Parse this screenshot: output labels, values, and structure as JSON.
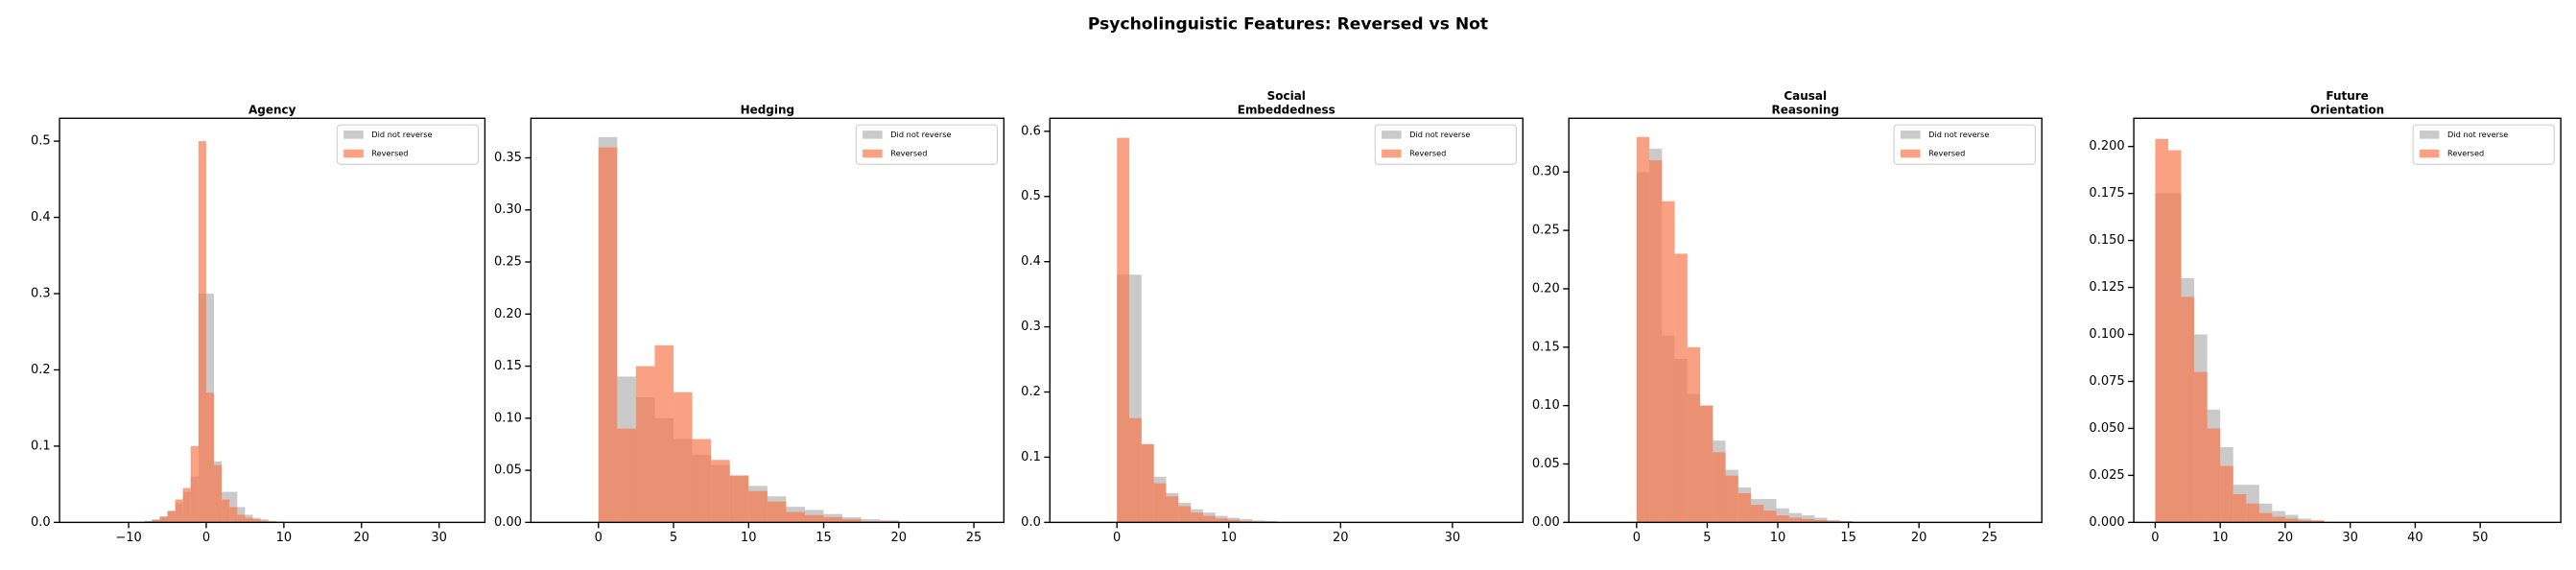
{
  "title": "Psycholinguistic Features: Reversed vs Not",
  "chart_data": [
    {
      "type": "histogram",
      "title": "Agency",
      "legend": "upper right",
      "xlim": [
        -18.9,
        35.9
      ],
      "ylim": [
        0,
        0.53
      ],
      "xticks": [
        {
          "value": -10,
          "label": "−10"
        },
        0,
        10,
        20,
        30
      ],
      "yticks": [
        {
          "value": 0,
          "label": "0.0"
        },
        0.1,
        0.2,
        0.3,
        0.4,
        0.5
      ],
      "series": [
        {
          "name": "Did not reverse",
          "color": "#a6a6a6",
          "bins": [
            -8,
            -7,
            -6,
            -5,
            -4,
            -3,
            -2,
            -1,
            0,
            1,
            2,
            3,
            4,
            5,
            6,
            7,
            8,
            9,
            10
          ],
          "values": [
            0.002,
            0.004,
            0.008,
            0.015,
            0.025,
            0.04,
            0.06,
            0.3,
            0.3,
            0.08,
            0.04,
            0.04,
            0.02,
            0.01,
            0.006,
            0.004,
            0.002,
            0.001
          ]
        },
        {
          "name": "Reversed",
          "color": "#f7794d",
          "bins": [
            -8,
            -7,
            -6,
            -5,
            -4,
            -3,
            -2,
            -1,
            0,
            1,
            2,
            3,
            4,
            5,
            6,
            7,
            8,
            9,
            10
          ],
          "values": [
            0.001,
            0.003,
            0.007,
            0.015,
            0.03,
            0.045,
            0.1,
            0.5,
            0.17,
            0.075,
            0.03,
            0.02,
            0.01,
            0.006,
            0.004,
            0.002,
            0.001,
            0.001
          ]
        }
      ]
    },
    {
      "type": "histogram",
      "title": "Hedging",
      "legend": "upper right",
      "xlim": [
        -4.5,
        27.0
      ],
      "ylim": [
        0,
        0.388
      ],
      "xticks": [
        0,
        5,
        10,
        15,
        20,
        25
      ],
      "yticks": [
        {
          "value": 0,
          "label": "0.00"
        },
        0.05,
        {
          "value": 0.1,
          "label": "0.10"
        },
        0.15,
        {
          "value": 0.2,
          "label": "0.20"
        },
        0.25,
        {
          "value": 0.3,
          "label": "0.30"
        },
        0.35
      ],
      "series": [
        {
          "name": "Did not reverse",
          "color": "#a6a6a6",
          "bins": [
            0,
            1.25,
            2.5,
            3.75,
            5,
            6.25,
            7.5,
            8.75,
            10,
            11.25,
            12.5,
            13.75,
            15,
            16.25,
            17.5,
            18.75,
            20
          ],
          "values": [
            0.37,
            0.14,
            0.12,
            0.1,
            0.08,
            0.065,
            0.055,
            0.045,
            0.035,
            0.025,
            0.015,
            0.012,
            0.008,
            0.005,
            0.003,
            0.002
          ]
        },
        {
          "name": "Reversed",
          "color": "#f7794d",
          "bins": [
            0,
            1.25,
            2.5,
            3.75,
            5,
            6.25,
            7.5,
            8.75,
            10,
            11.25,
            12.5,
            13.75,
            15,
            16.25,
            17.5,
            18.75,
            20
          ],
          "values": [
            0.36,
            0.09,
            0.15,
            0.17,
            0.125,
            0.08,
            0.06,
            0.045,
            0.03,
            0.02,
            0.01,
            0.007,
            0.005,
            0.003,
            0.001,
            0.001
          ]
        }
      ]
    },
    {
      "type": "histogram",
      "title": "Social\nEmbeddedness",
      "legend": "upper right",
      "xlim": [
        -6.0,
        36.3
      ],
      "ylim": [
        0,
        0.62
      ],
      "xticks": [
        0,
        10,
        20,
        30
      ],
      "yticks": [
        {
          "value": 0,
          "label": "0.0"
        },
        0.1,
        0.2,
        0.3,
        0.4,
        0.5,
        0.6
      ],
      "series": [
        {
          "name": "Did not reverse",
          "color": "#a6a6a6",
          "bins": [
            0,
            1.1,
            2.2,
            3.3,
            4.4,
            5.5,
            6.6,
            7.7,
            8.8,
            9.9,
            11,
            12.1,
            13.2,
            14.3
          ],
          "values": [
            0.38,
            0.38,
            0.12,
            0.07,
            0.045,
            0.03,
            0.02,
            0.015,
            0.01,
            0.007,
            0.005,
            0.003,
            0.002
          ]
        },
        {
          "name": "Reversed",
          "color": "#f7794d",
          "bins": [
            0,
            1.1,
            2.2,
            3.3,
            4.4,
            5.5,
            6.6,
            7.7,
            8.8,
            9.9,
            11,
            12.1,
            13.2,
            14.3
          ],
          "values": [
            0.59,
            0.16,
            0.12,
            0.06,
            0.04,
            0.025,
            0.015,
            0.01,
            0.006,
            0.004,
            0.002,
            0.001,
            0.001
          ]
        }
      ]
    },
    {
      "type": "histogram",
      "title": "Causal\nReasoning",
      "legend": "upper right",
      "xlim": [
        -4.8,
        28.7
      ],
      "ylim": [
        0,
        0.346
      ],
      "xticks": [
        0,
        5,
        10,
        15,
        20,
        25
      ],
      "yticks": [
        {
          "value": 0,
          "label": "0.00"
        },
        0.05,
        {
          "value": 0.1,
          "label": "0.10"
        },
        0.15,
        {
          "value": 0.2,
          "label": "0.20"
        },
        0.25,
        {
          "value": 0.3,
          "label": "0.30"
        }
      ],
      "series": [
        {
          "name": "Did not reverse",
          "color": "#a6a6a6",
          "bins": [
            0,
            0.9,
            1.8,
            2.7,
            3.6,
            4.5,
            5.4,
            6.3,
            7.2,
            8.1,
            9,
            9.9,
            10.8,
            11.7,
            12.6,
            13.5,
            14.4,
            15.3
          ],
          "values": [
            0.3,
            0.32,
            0.16,
            0.14,
            0.11,
            0.1,
            0.07,
            0.045,
            0.03,
            0.02,
            0.02,
            0.012,
            0.008,
            0.006,
            0.004,
            0.002,
            0.001
          ]
        },
        {
          "name": "Reversed",
          "color": "#f7794d",
          "bins": [
            0,
            0.9,
            1.8,
            2.7,
            3.6,
            4.5,
            5.4,
            6.3,
            7.2,
            8.1,
            9,
            9.9,
            10.8,
            11.7,
            12.6,
            13.5,
            14.4,
            15.3
          ],
          "values": [
            0.33,
            0.31,
            0.275,
            0.23,
            0.15,
            0.1,
            0.06,
            0.04,
            0.025,
            0.015,
            0.01,
            0.006,
            0.004,
            0.003,
            0.002,
            0.001,
            0.001
          ]
        }
      ]
    },
    {
      "type": "histogram",
      "title": "Future\nOrientation",
      "legend": "upper right",
      "xlim": [
        -3.3,
        62.4
      ],
      "ylim": [
        0,
        0.215
      ],
      "xticks": [
        0,
        10,
        20,
        30,
        40,
        50
      ],
      "yticks": [
        {
          "value": 0,
          "label": "0.000"
        },
        0.025,
        {
          "value": 0.05,
          "label": "0.050"
        },
        0.075,
        {
          "value": 0.1,
          "label": "0.100"
        },
        0.125,
        {
          "value": 0.15,
          "label": "0.150"
        },
        0.175,
        {
          "value": 0.2,
          "label": "0.200"
        }
      ],
      "series": [
        {
          "name": "Did not reverse",
          "color": "#a6a6a6",
          "bins": [
            0,
            2,
            4,
            6,
            8,
            10,
            12,
            14,
            16,
            18,
            20,
            22,
            24,
            26
          ],
          "values": [
            0.175,
            0.175,
            0.13,
            0.1,
            0.06,
            0.04,
            0.02,
            0.02,
            0.01,
            0.006,
            0.004,
            0.002,
            0.001
          ]
        },
        {
          "name": "Reversed",
          "color": "#f7794d",
          "bins": [
            0,
            2,
            4,
            6,
            8,
            10,
            12,
            14,
            16,
            18,
            20,
            22,
            24,
            26
          ],
          "values": [
            0.204,
            0.198,
            0.12,
            0.08,
            0.05,
            0.03,
            0.015,
            0.01,
            0.005,
            0.003,
            0.002,
            0.001,
            0.001
          ]
        }
      ]
    }
  ]
}
